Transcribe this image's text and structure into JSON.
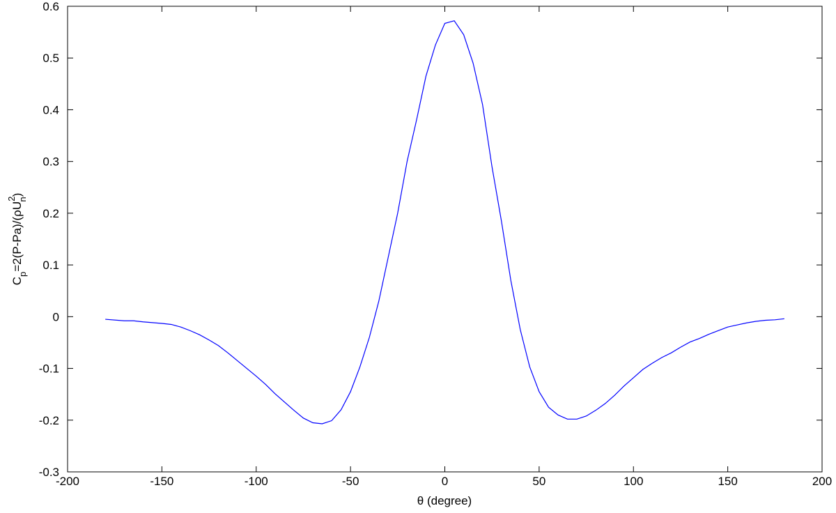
{
  "chart_data": {
    "type": "line",
    "xlabel": "θ (degree)",
    "ylabel": {
      "parts": [
        "C",
        "p",
        "=2(P-Pa)/(ρU",
        "2",
        "n",
        ")"
      ]
    },
    "x": [
      -180,
      -170,
      -165,
      -160,
      -150,
      -145,
      -140,
      -135,
      -130,
      -125,
      -120,
      -115,
      -110,
      -105,
      -100,
      -95,
      -90,
      -85,
      -80,
      -75,
      -70,
      -65,
      -60,
      -55,
      -50,
      -45,
      -40,
      -35,
      -30,
      -25,
      -20,
      -15,
      -10,
      -5,
      0,
      5,
      10,
      15,
      20,
      25,
      30,
      35,
      40,
      45,
      50,
      55,
      60,
      65,
      70,
      75,
      80,
      85,
      90,
      95,
      100,
      105,
      110,
      115,
      120,
      125,
      130,
      135,
      140,
      145,
      150,
      155,
      160,
      165,
      170,
      175,
      180
    ],
    "series": [
      {
        "color": "#0000ff",
        "values": [
          -0.005,
          -0.008,
          -0.008,
          -0.01,
          -0.013,
          -0.015,
          -0.02,
          -0.027,
          -0.035,
          -0.045,
          -0.056,
          -0.07,
          -0.085,
          -0.1,
          -0.115,
          -0.131,
          -0.149,
          -0.165,
          -0.181,
          -0.196,
          -0.205,
          -0.207,
          -0.201,
          -0.18,
          -0.145,
          -0.097,
          -0.04,
          0.03,
          0.115,
          0.2,
          0.3,
          0.38,
          0.465,
          0.525,
          0.567,
          0.572,
          0.545,
          0.49,
          0.41,
          0.29,
          0.185,
          0.07,
          -0.025,
          -0.097,
          -0.145,
          -0.175,
          -0.19,
          -0.198,
          -0.198,
          -0.192,
          -0.181,
          -0.168,
          -0.152,
          -0.134,
          -0.118,
          -0.102,
          -0.09,
          -0.079,
          -0.07,
          -0.059,
          -0.049,
          -0.042,
          -0.034,
          -0.027,
          -0.02,
          -0.016,
          -0.012,
          -0.009,
          -0.007,
          -0.006,
          -0.004
        ]
      }
    ],
    "xlim": [
      -200,
      200
    ],
    "xticks": [
      -200,
      -150,
      -100,
      -50,
      0,
      50,
      100,
      150,
      200
    ],
    "ylim": [
      -0.3,
      0.6
    ],
    "yticks": [
      -0.3,
      -0.2,
      -0.1,
      0,
      0.1,
      0.2,
      0.3,
      0.4,
      0.5,
      0.6
    ]
  }
}
